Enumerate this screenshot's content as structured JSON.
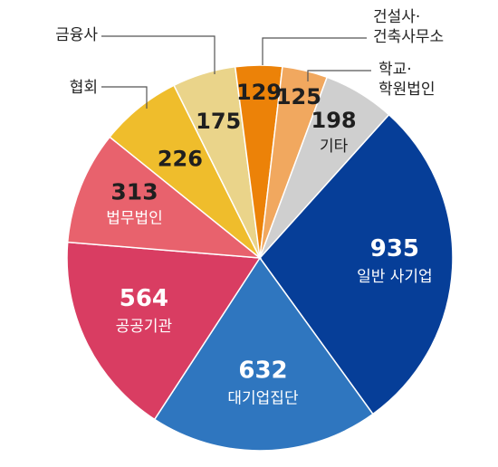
{
  "chart_data": {
    "type": "pie",
    "title": "",
    "categories": [
      "일반 사기업",
      "대기업집단",
      "공공기관",
      "법무법인",
      "협회",
      "금융사",
      "건설사·건축사무소",
      "학교·학원법인",
      "기타"
    ],
    "label_lines": [
      [
        "일반 사기업"
      ],
      [
        "대기업집단"
      ],
      [
        "공공기관"
      ],
      [
        "법무법인"
      ],
      [
        "협회"
      ],
      [
        "금융사"
      ],
      [
        "건설사·",
        "건축사무소"
      ],
      [
        "학교·",
        "학원법인"
      ],
      [
        "기타"
      ]
    ],
    "values": [
      935,
      632,
      564,
      313,
      226,
      175,
      129,
      125,
      198
    ],
    "value_labels": [
      "935",
      "632",
      "564",
      "313",
      "226",
      "175",
      "129",
      "125",
      "198"
    ],
    "colors": [
      "#063e98",
      "#2f76bf",
      "#d93d62",
      "#e8626d",
      "#efbd2c",
      "#ead48a",
      "#ec8208",
      "#f1a85f",
      "#cfcfcf"
    ],
    "start_angle_deg": 42,
    "direction": "clockwise"
  }
}
